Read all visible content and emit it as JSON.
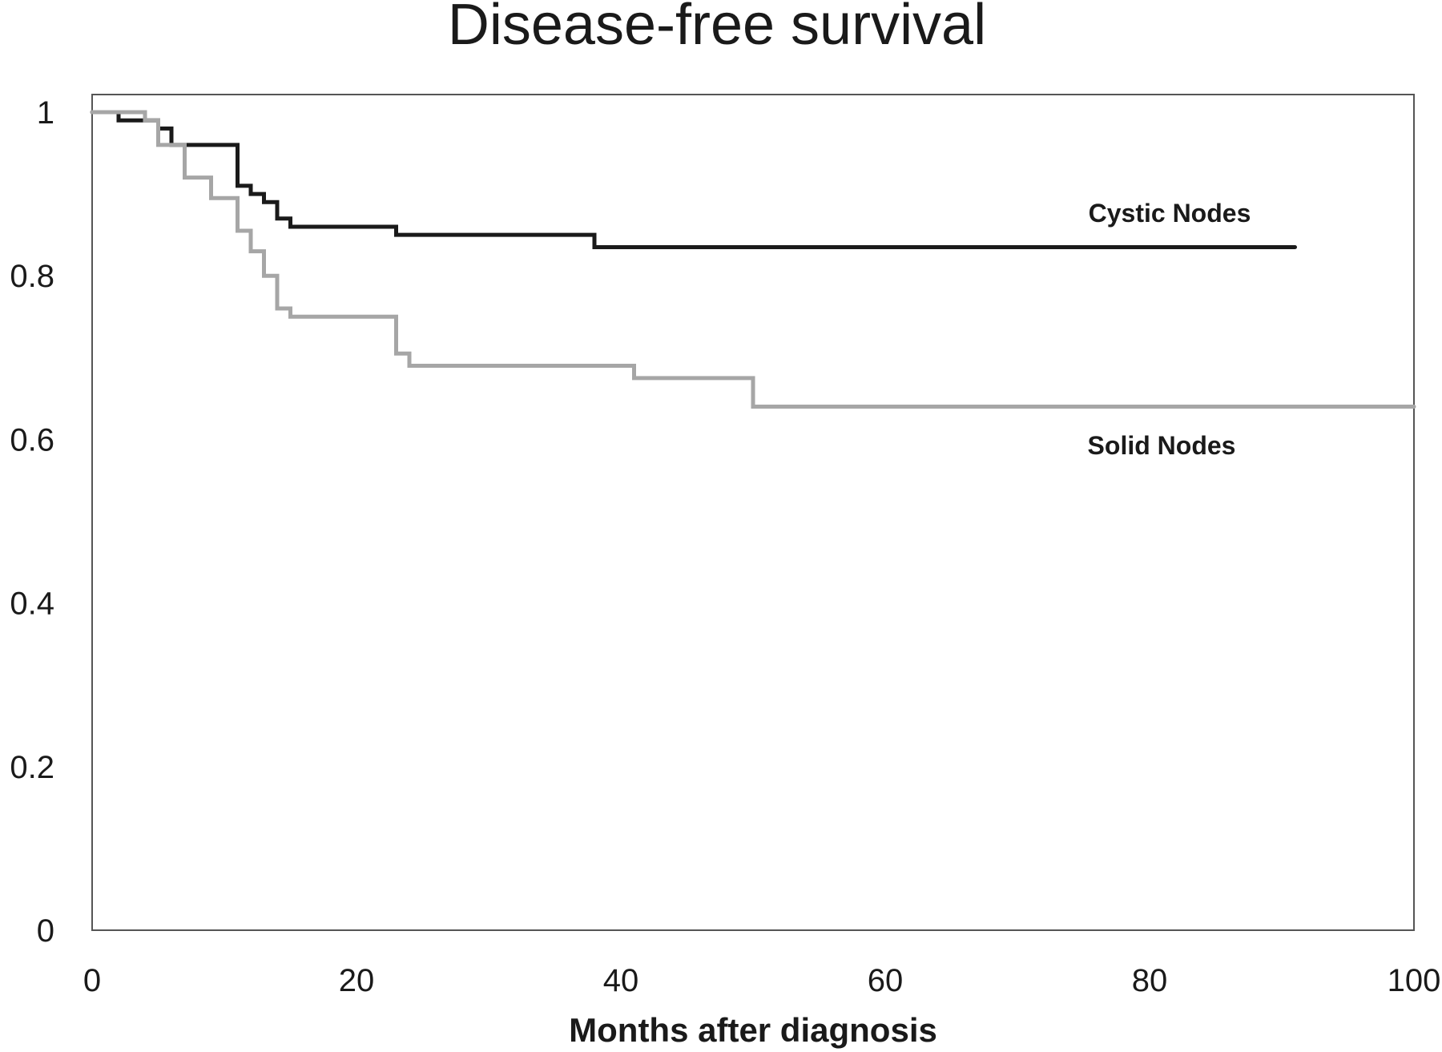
{
  "chart_data": {
    "type": "line",
    "step": true,
    "title": "Disease-free survival",
    "xlabel": "Months after diagnosis",
    "ylabel": "",
    "xlim": [
      0,
      100
    ],
    "ylim": [
      0,
      1
    ],
    "xticks": [
      "0",
      "20",
      "40",
      "60",
      "80",
      "100"
    ],
    "yticks": [
      "0",
      "0.2",
      "0.4",
      "0.6",
      "0.8",
      "1"
    ],
    "grid": false,
    "series": [
      {
        "name": "Cystic Nodes",
        "color": "#1a1a1a",
        "x": [
          0,
          2,
          5,
          6,
          11,
          12,
          13,
          14,
          15,
          23,
          38,
          91
        ],
        "y": [
          1.0,
          0.99,
          0.98,
          0.96,
          0.91,
          0.9,
          0.89,
          0.87,
          0.86,
          0.85,
          0.835,
          0.835
        ]
      },
      {
        "name": "Solid Nodes",
        "color": "#a6a6a6",
        "x": [
          0,
          4,
          5,
          7,
          9,
          11,
          12,
          13,
          14,
          15,
          23,
          24,
          41,
          50,
          100
        ],
        "y": [
          1.0,
          0.99,
          0.96,
          0.92,
          0.895,
          0.855,
          0.83,
          0.8,
          0.76,
          0.75,
          0.705,
          0.69,
          0.675,
          0.64,
          0.64
        ]
      }
    ]
  }
}
